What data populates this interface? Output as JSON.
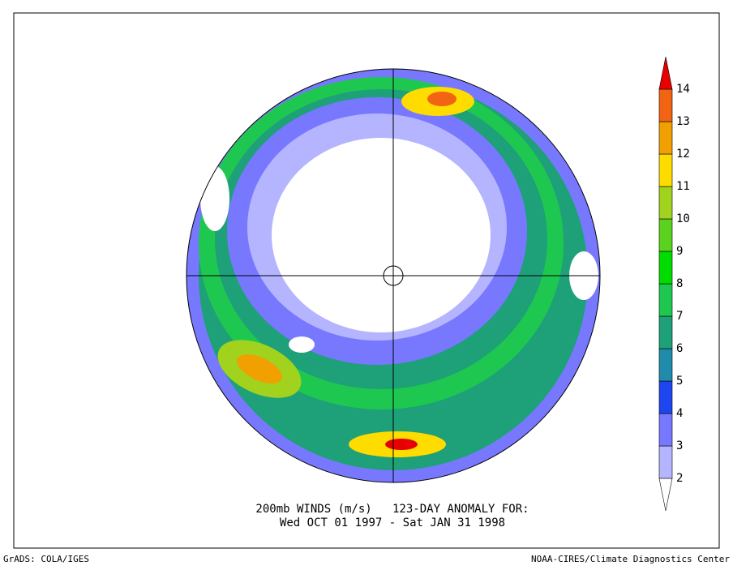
{
  "title": [
    "200mb WINDS (m/s)   123-DAY ANOMALY FOR:",
    "Wed OCT 01 1997 - Sat JAN 31 1998"
  ],
  "colorbar": {
    "levels": [
      2,
      3,
      4,
      5,
      6,
      7,
      8,
      9,
      10,
      11,
      12,
      13,
      14
    ],
    "colors": [
      "#ffffff",
      "#b4b4ff",
      "#7878ff",
      "#1e46f0",
      "#1e8caa",
      "#1ea078",
      "#1ec850",
      "#00dc00",
      "#5ad21e",
      "#a0d21e",
      "#ffdc00",
      "#f0a000",
      "#f06414",
      "#e60000"
    ]
  },
  "footer": {
    "left": "GrADS: COLA/IGES",
    "right": "NOAA-CIRES/Climate Diagnostics Center"
  }
}
